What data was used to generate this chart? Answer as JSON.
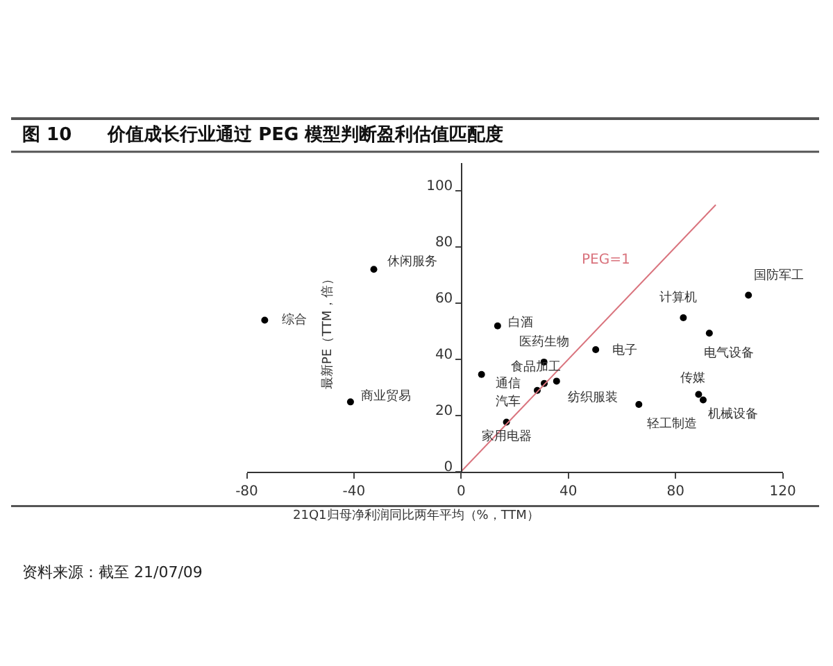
{
  "chart_data": {
    "type": "scatter",
    "title": "图 10　　价值成长行业通过 PEG 模型判断盈利估值匹配度",
    "xlabel": "21Q1归母净利润同比两年平均（%，TTM）",
    "ylabel": "最新PE（TTM，倍）",
    "series": [
      {
        "color": "#000000",
        "x": [
          -73.3,
          -32.6,
          -41.3,
          13.6,
          7.6,
          30.9,
          31.0,
          35.6,
          28.4,
          16.9,
          50.2,
          66.3,
          82.9,
          92.6,
          107.2,
          88.6,
          90.3
        ],
        "values": [
          53.9,
          72.0,
          24.8,
          51.9,
          34.6,
          39.0,
          31.4,
          32.2,
          28.9,
          17.6,
          43.4,
          23.9,
          54.8,
          49.3,
          62.8,
          27.5,
          25.5
        ]
      },
      {
        "type": "line",
        "name": "PEG=1",
        "marker": "none",
        "color": "#d9737d",
        "x": [
          0,
          95
        ],
        "values": [
          0,
          95
        ]
      }
    ],
    "annotations": [
      {
        "text": "综合",
        "x": -73.3,
        "y": 53.9
      },
      {
        "text": "休闲服务",
        "x": -32.6,
        "y": 72.0
      },
      {
        "text": "商业贸易",
        "x": -41.3,
        "y": 24.8
      },
      {
        "text": "白酒",
        "x": 13.6,
        "y": 51.9
      },
      {
        "text": "通信",
        "x": 7.6,
        "y": 34.6
      },
      {
        "text": "医药生物",
        "x": 30.9,
        "y": 39.0
      },
      {
        "text": "食品加工",
        "x": 31.0,
        "y": 31.4
      },
      {
        "text": "纺织服装",
        "x": 35.6,
        "y": 32.2
      },
      {
        "text": "汽车",
        "x": 28.4,
        "y": 28.9
      },
      {
        "text": "家用电器",
        "x": 16.9,
        "y": 17.6
      },
      {
        "text": "电子",
        "x": 50.2,
        "y": 43.4
      },
      {
        "text": "轻工制造",
        "x": 66.3,
        "y": 23.9
      },
      {
        "text": "计算机",
        "x": 82.9,
        "y": 54.8
      },
      {
        "text": "电气设备",
        "x": 92.6,
        "y": 49.3
      },
      {
        "text": "国防军工",
        "x": 107.2,
        "y": 62.8
      },
      {
        "text": "传媒",
        "x": 88.6,
        "y": 27.5
      },
      {
        "text": "机械设备",
        "x": 90.3,
        "y": 25.5
      },
      "资料来源：截至 21/07/09"
    ],
    "xlim": [
      -80,
      120
    ],
    "xticks": [
      -80,
      -40,
      0,
      40,
      80,
      120
    ],
    "ylim": [
      0,
      110
    ],
    "yticks": [
      0,
      20,
      40,
      60,
      80,
      100
    ],
    "legend": false,
    "marker": "circle"
  }
}
